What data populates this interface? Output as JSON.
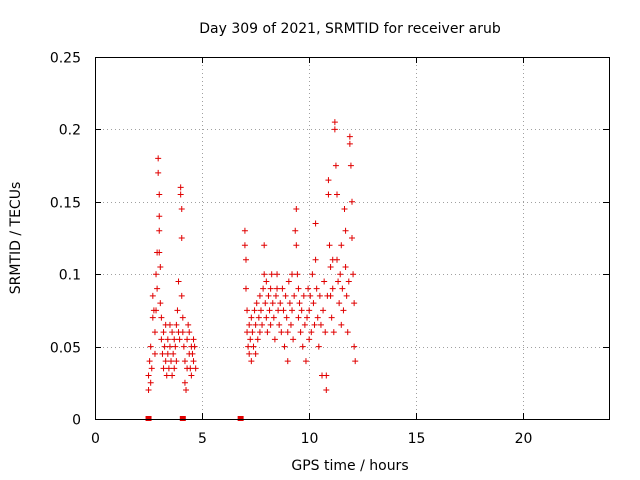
{
  "chart_data": {
    "type": "scatter",
    "title": "Day 309 of 2021, SRMTID for receiver arub",
    "xlabel": "GPS time / hours",
    "ylabel": "SRMTID / TECUs",
    "xlim": [
      0,
      24
    ],
    "ylim": [
      0,
      0.25
    ],
    "xticks": [
      0,
      5,
      10,
      15,
      20
    ],
    "xtick_labels": [
      "0",
      "5",
      "10",
      "15",
      "20"
    ],
    "yticks": [
      0,
      0.05,
      0.1,
      0.15,
      0.2,
      0.25
    ],
    "ytick_labels": [
      "0",
      "0.05",
      "0.1",
      "0.15",
      "0.2",
      "0.25"
    ],
    "grid": true,
    "marker": "plus",
    "color": "#e00000",
    "zero_markers_x": [
      2.5,
      4.1,
      6.8
    ],
    "series": [
      {
        "name": "SRMTID",
        "points": [
          [
            2.5,
            0.02
          ],
          [
            2.5,
            0.03
          ],
          [
            2.55,
            0.04
          ],
          [
            2.6,
            0.05
          ],
          [
            2.6,
            0.025
          ],
          [
            2.65,
            0.035
          ],
          [
            2.7,
            0.07
          ],
          [
            2.7,
            0.085
          ],
          [
            2.75,
            0.075
          ],
          [
            2.8,
            0.06
          ],
          [
            2.8,
            0.045
          ],
          [
            2.85,
            0.1
          ],
          [
            2.85,
            0.075
          ],
          [
            2.9,
            0.115
          ],
          [
            2.9,
            0.09
          ],
          [
            2.95,
            0.18
          ],
          [
            2.95,
            0.17
          ],
          [
            3.0,
            0.155
          ],
          [
            3.0,
            0.14
          ],
          [
            3.0,
            0.13
          ],
          [
            3.0,
            0.115
          ],
          [
            3.05,
            0.105
          ],
          [
            3.05,
            0.08
          ],
          [
            3.1,
            0.07
          ],
          [
            3.1,
            0.055
          ],
          [
            3.15,
            0.045
          ],
          [
            3.2,
            0.035
          ],
          [
            3.2,
            0.06
          ],
          [
            3.25,
            0.05
          ],
          [
            3.3,
            0.04
          ],
          [
            3.3,
            0.065
          ],
          [
            3.35,
            0.03
          ],
          [
            3.4,
            0.045
          ],
          [
            3.4,
            0.055
          ],
          [
            3.45,
            0.035
          ],
          [
            3.5,
            0.05
          ],
          [
            3.5,
            0.065
          ],
          [
            3.55,
            0.04
          ],
          [
            3.6,
            0.03
          ],
          [
            3.6,
            0.06
          ],
          [
            3.65,
            0.045
          ],
          [
            3.7,
            0.035
          ],
          [
            3.7,
            0.055
          ],
          [
            3.75,
            0.05
          ],
          [
            3.8,
            0.065
          ],
          [
            3.8,
            0.04
          ],
          [
            3.85,
            0.075
          ],
          [
            3.9,
            0.095
          ],
          [
            3.9,
            0.06
          ],
          [
            3.95,
            0.055
          ],
          [
            4.0,
            0.16
          ],
          [
            4.0,
            0.155
          ],
          [
            4.05,
            0.145
          ],
          [
            4.05,
            0.125
          ],
          [
            4.05,
            0.085
          ],
          [
            4.1,
            0.07
          ],
          [
            4.1,
            0.06
          ],
          [
            4.15,
            0.05
          ],
          [
            4.2,
            0.04
          ],
          [
            4.2,
            0.025
          ],
          [
            4.25,
            0.02
          ],
          [
            4.3,
            0.055
          ],
          [
            4.3,
            0.035
          ],
          [
            4.35,
            0.065
          ],
          [
            4.4,
            0.06
          ],
          [
            4.4,
            0.045
          ],
          [
            4.45,
            0.035
          ],
          [
            4.5,
            0.05
          ],
          [
            4.5,
            0.03
          ],
          [
            4.55,
            0.045
          ],
          [
            4.6,
            0.055
          ],
          [
            4.6,
            0.04
          ],
          [
            4.65,
            0.05
          ],
          [
            4.7,
            0.035
          ],
          [
            7.0,
            0.13
          ],
          [
            7.0,
            0.12
          ],
          [
            7.05,
            0.11
          ],
          [
            7.05,
            0.09
          ],
          [
            7.1,
            0.075
          ],
          [
            7.1,
            0.06
          ],
          [
            7.15,
            0.05
          ],
          [
            7.2,
            0.065
          ],
          [
            7.2,
            0.045
          ],
          [
            7.25,
            0.055
          ],
          [
            7.3,
            0.07
          ],
          [
            7.3,
            0.04
          ],
          [
            7.35,
            0.06
          ],
          [
            7.4,
            0.05
          ],
          [
            7.45,
            0.075
          ],
          [
            7.5,
            0.065
          ],
          [
            7.5,
            0.045
          ],
          [
            7.55,
            0.08
          ],
          [
            7.6,
            0.055
          ],
          [
            7.65,
            0.07
          ],
          [
            7.7,
            0.085
          ],
          [
            7.7,
            0.06
          ],
          [
            7.75,
            0.075
          ],
          [
            7.8,
            0.065
          ],
          [
            7.85,
            0.09
          ],
          [
            7.9,
            0.12
          ],
          [
            7.9,
            0.1
          ],
          [
            7.95,
            0.08
          ],
          [
            8.0,
            0.07
          ],
          [
            8.0,
            0.095
          ],
          [
            8.05,
            0.06
          ],
          [
            8.1,
            0.085
          ],
          [
            8.15,
            0.075
          ],
          [
            8.2,
            0.09
          ],
          [
            8.2,
            0.065
          ],
          [
            8.25,
            0.1
          ],
          [
            8.3,
            0.08
          ],
          [
            8.35,
            0.07
          ],
          [
            8.4,
            0.055
          ],
          [
            8.45,
            0.085
          ],
          [
            8.5,
            0.09
          ],
          [
            8.5,
            0.1
          ],
          [
            8.55,
            0.075
          ],
          [
            8.6,
            0.065
          ],
          [
            8.65,
            0.08
          ],
          [
            8.7,
            0.06
          ],
          [
            8.75,
            0.09
          ],
          [
            8.8,
            0.075
          ],
          [
            8.85,
            0.05
          ],
          [
            8.9,
            0.085
          ],
          [
            8.95,
            0.07
          ],
          [
            9.0,
            0.06
          ],
          [
            9.0,
            0.04
          ],
          [
            9.05,
            0.095
          ],
          [
            9.1,
            0.08
          ],
          [
            9.15,
            0.065
          ],
          [
            9.2,
            0.1
          ],
          [
            9.2,
            0.075
          ],
          [
            9.25,
            0.055
          ],
          [
            9.3,
            0.085
          ],
          [
            9.35,
            0.13
          ],
          [
            9.4,
            0.145
          ],
          [
            9.4,
            0.12
          ],
          [
            9.45,
            0.1
          ],
          [
            9.5,
            0.09
          ],
          [
            9.5,
            0.07
          ],
          [
            9.55,
            0.08
          ],
          [
            9.6,
            0.06
          ],
          [
            9.65,
            0.075
          ],
          [
            9.7,
            0.05
          ],
          [
            9.75,
            0.085
          ],
          [
            9.8,
            0.065
          ],
          [
            9.85,
            0.04
          ],
          [
            9.9,
            0.07
          ],
          [
            9.95,
            0.09
          ],
          [
            10.0,
            0.075
          ],
          [
            10.0,
            0.055
          ],
          [
            10.05,
            0.085
          ],
          [
            10.1,
            0.06
          ],
          [
            10.15,
            0.1
          ],
          [
            10.2,
            0.08
          ],
          [
            10.25,
            0.065
          ],
          [
            10.3,
            0.135
          ],
          [
            10.3,
            0.11
          ],
          [
            10.35,
            0.09
          ],
          [
            10.4,
            0.07
          ],
          [
            10.45,
            0.05
          ],
          [
            10.5,
            0.085
          ],
          [
            10.55,
            0.065
          ],
          [
            10.6,
            0.03
          ],
          [
            10.65,
            0.075
          ],
          [
            10.7,
            0.095
          ],
          [
            10.75,
            0.06
          ],
          [
            10.8,
            0.02
          ],
          [
            10.8,
            0.03
          ],
          [
            10.85,
            0.085
          ],
          [
            10.9,
            0.165
          ],
          [
            10.9,
            0.155
          ],
          [
            10.95,
            0.12
          ],
          [
            11.0,
            0.105
          ],
          [
            11.0,
            0.085
          ],
          [
            11.05,
            0.07
          ],
          [
            11.1,
            0.11
          ],
          [
            11.1,
            0.09
          ],
          [
            11.15,
            0.06
          ],
          [
            11.2,
            0.2
          ],
          [
            11.2,
            0.205
          ],
          [
            11.25,
            0.175
          ],
          [
            11.3,
            0.155
          ],
          [
            11.3,
            0.11
          ],
          [
            11.35,
            0.095
          ],
          [
            11.4,
            0.08
          ],
          [
            11.45,
            0.1
          ],
          [
            11.5,
            0.12
          ],
          [
            11.5,
            0.065
          ],
          [
            11.55,
            0.09
          ],
          [
            11.6,
            0.075
          ],
          [
            11.65,
            0.145
          ],
          [
            11.7,
            0.13
          ],
          [
            11.7,
            0.105
          ],
          [
            11.75,
            0.085
          ],
          [
            11.8,
            0.06
          ],
          [
            11.85,
            0.095
          ],
          [
            11.9,
            0.195
          ],
          [
            11.9,
            0.19
          ],
          [
            11.95,
            0.175
          ],
          [
            12.0,
            0.15
          ],
          [
            12.0,
            0.125
          ],
          [
            12.05,
            0.1
          ],
          [
            12.1,
            0.08
          ],
          [
            12.1,
            0.05
          ],
          [
            12.15,
            0.04
          ]
        ]
      }
    ]
  }
}
